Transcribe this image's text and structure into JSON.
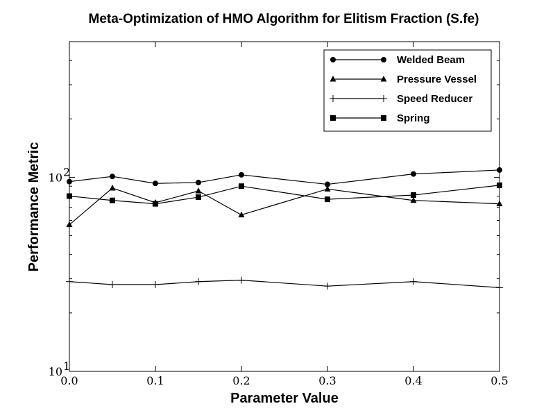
{
  "chart_data": {
    "type": "line",
    "title": "Meta-Optimization of HMO Algorithm for Elitism Fraction (S.fe)",
    "xlabel": "Parameter Value",
    "ylabel": "Performance Metric",
    "x": [
      0.0,
      0.05,
      0.1,
      0.15,
      0.2,
      0.3,
      0.4,
      0.5
    ],
    "xlim": [
      0.0,
      0.5
    ],
    "xticks": [
      0.0,
      0.1,
      0.2,
      0.3,
      0.4,
      0.5
    ],
    "xtick_labels": [
      "0.0",
      "0.1",
      "0.2",
      "0.3",
      "0.4",
      "0.5"
    ],
    "yscale": "log",
    "ylim": [
      10,
      500
    ],
    "yticks": [
      10,
      100
    ],
    "ytick_labels": [
      {
        "base": "10",
        "exp": "1"
      },
      {
        "base": "10",
        "exp": "2"
      }
    ],
    "grid": false,
    "legend_position": "top-right",
    "series": [
      {
        "name": "Welded Beam",
        "marker": "circle",
        "values": [
          95,
          101,
          93,
          94,
          103,
          92,
          104,
          109
        ]
      },
      {
        "name": "Pressure Vessel",
        "marker": "triangle",
        "values": [
          57,
          88,
          74,
          85,
          64,
          87,
          76,
          73
        ]
      },
      {
        "name": "Speed Reducer",
        "marker": "plus",
        "values": [
          29,
          28,
          28,
          29,
          29.5,
          27.5,
          29,
          27
        ]
      },
      {
        "name": "Spring",
        "marker": "square",
        "values": [
          80,
          76,
          73,
          79,
          90,
          77,
          81,
          91
        ]
      }
    ]
  }
}
